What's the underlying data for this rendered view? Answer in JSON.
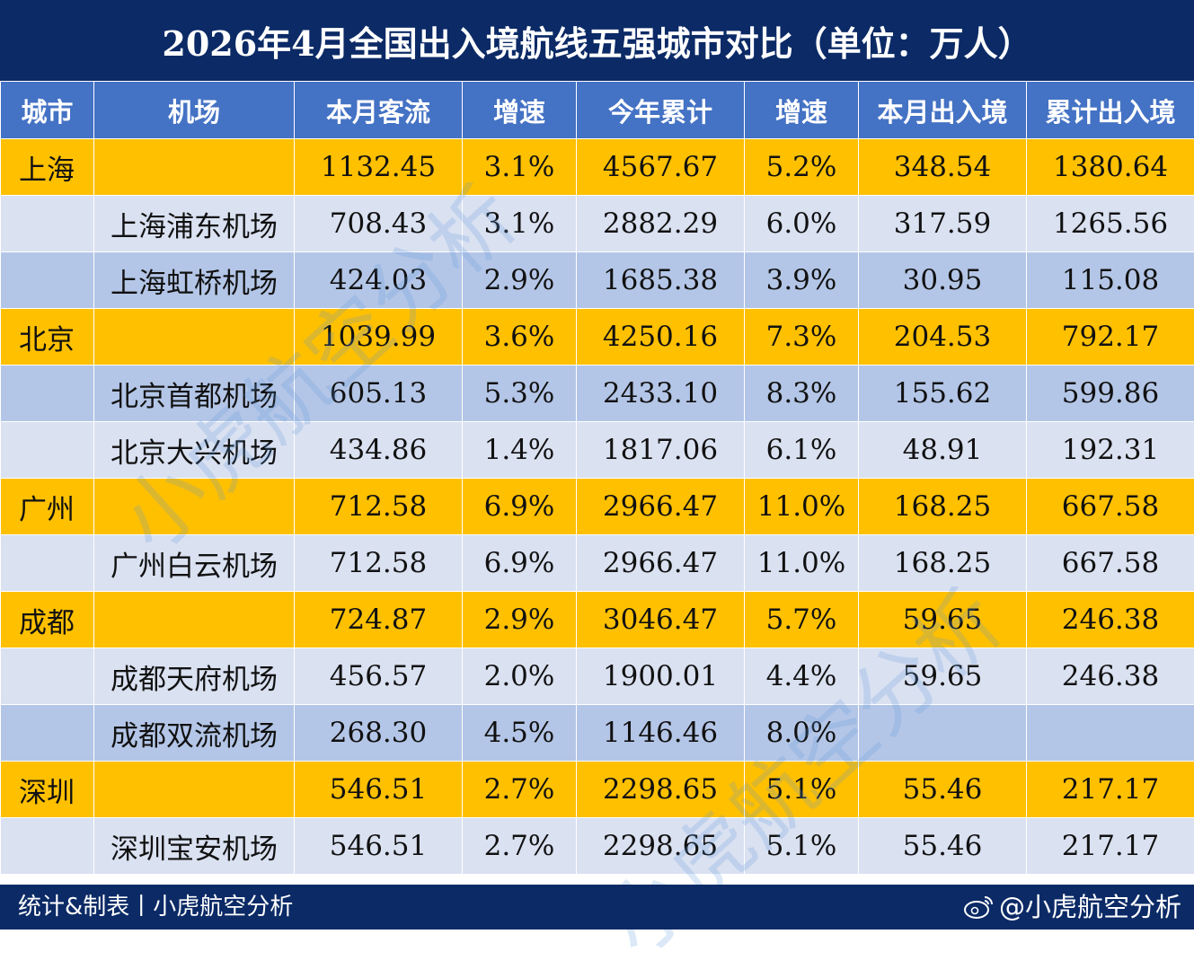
{
  "title": "2026年4月全国出入境航线五强城市对比（单位：万人）",
  "columns": [
    "城市",
    "机场",
    "本月客流",
    "增速",
    "今年累计",
    "增速",
    "本月出入境",
    "累计出入境"
  ],
  "rows": [
    {
      "type": "city",
      "city": "上海",
      "airport": "",
      "monthly": "1132.45",
      "growth": "3.1%",
      "ytd": "4567.67",
      "ytd_growth": "5.2%",
      "intl_monthly": "348.54",
      "intl_ytd": "1380.64"
    },
    {
      "type": "light",
      "city": "",
      "airport": "上海浦东机场",
      "monthly": "708.43",
      "growth": "3.1%",
      "ytd": "2882.29",
      "ytd_growth": "6.0%",
      "intl_monthly": "317.59",
      "intl_ytd": "1265.56"
    },
    {
      "type": "mid",
      "city": "",
      "airport": "上海虹桥机场",
      "monthly": "424.03",
      "growth": "2.9%",
      "ytd": "1685.38",
      "ytd_growth": "3.9%",
      "intl_monthly": "30.95",
      "intl_ytd": "115.08"
    },
    {
      "type": "city",
      "city": "北京",
      "airport": "",
      "monthly": "1039.99",
      "growth": "3.6%",
      "ytd": "4250.16",
      "ytd_growth": "7.3%",
      "intl_monthly": "204.53",
      "intl_ytd": "792.17"
    },
    {
      "type": "mid",
      "city": "",
      "airport": "北京首都机场",
      "monthly": "605.13",
      "growth": "5.3%",
      "ytd": "2433.10",
      "ytd_growth": "8.3%",
      "intl_monthly": "155.62",
      "intl_ytd": "599.86"
    },
    {
      "type": "light",
      "city": "",
      "airport": "北京大兴机场",
      "monthly": "434.86",
      "growth": "1.4%",
      "ytd": "1817.06",
      "ytd_growth": "6.1%",
      "intl_monthly": "48.91",
      "intl_ytd": "192.31"
    },
    {
      "type": "city",
      "city": "广州",
      "airport": "",
      "monthly": "712.58",
      "growth": "6.9%",
      "ytd": "2966.47",
      "ytd_growth": "11.0%",
      "intl_monthly": "168.25",
      "intl_ytd": "667.58"
    },
    {
      "type": "light",
      "city": "",
      "airport": "广州白云机场",
      "monthly": "712.58",
      "growth": "6.9%",
      "ytd": "2966.47",
      "ytd_growth": "11.0%",
      "intl_monthly": "168.25",
      "intl_ytd": "667.58"
    },
    {
      "type": "city",
      "city": "成都",
      "airport": "",
      "monthly": "724.87",
      "growth": "2.9%",
      "ytd": "3046.47",
      "ytd_growth": "5.7%",
      "intl_monthly": "59.65",
      "intl_ytd": "246.38"
    },
    {
      "type": "light",
      "city": "",
      "airport": "成都天府机场",
      "monthly": "456.57",
      "growth": "2.0%",
      "ytd": "1900.01",
      "ytd_growth": "4.4%",
      "intl_monthly": "59.65",
      "intl_ytd": "246.38"
    },
    {
      "type": "mid",
      "city": "",
      "airport": "成都双流机场",
      "monthly": "268.30",
      "growth": "4.5%",
      "ytd": "1146.46",
      "ytd_growth": "8.0%",
      "intl_monthly": "",
      "intl_ytd": ""
    },
    {
      "type": "city",
      "city": "深圳",
      "airport": "",
      "monthly": "546.51",
      "growth": "2.7%",
      "ytd": "2298.65",
      "ytd_growth": "5.1%",
      "intl_monthly": "55.46",
      "intl_ytd": "217.17"
    },
    {
      "type": "light",
      "city": "",
      "airport": "深圳宝安机场",
      "monthly": "546.51",
      "growth": "2.7%",
      "ytd": "2298.65",
      "ytd_growth": "5.1%",
      "intl_monthly": "55.46",
      "intl_ytd": "217.17"
    }
  ],
  "footer": {
    "credit": "统计&制表丨小虎航空分析",
    "handle": "@小虎航空分析",
    "icon": "weibo-icon"
  },
  "watermark": "小虎航空分析",
  "colors": {
    "title_bg": "#0b2a66",
    "header_bg": "#4472c4",
    "city_row": "#ffc000",
    "row_light": "#dae1f1",
    "row_mid": "#b4c6e7"
  }
}
